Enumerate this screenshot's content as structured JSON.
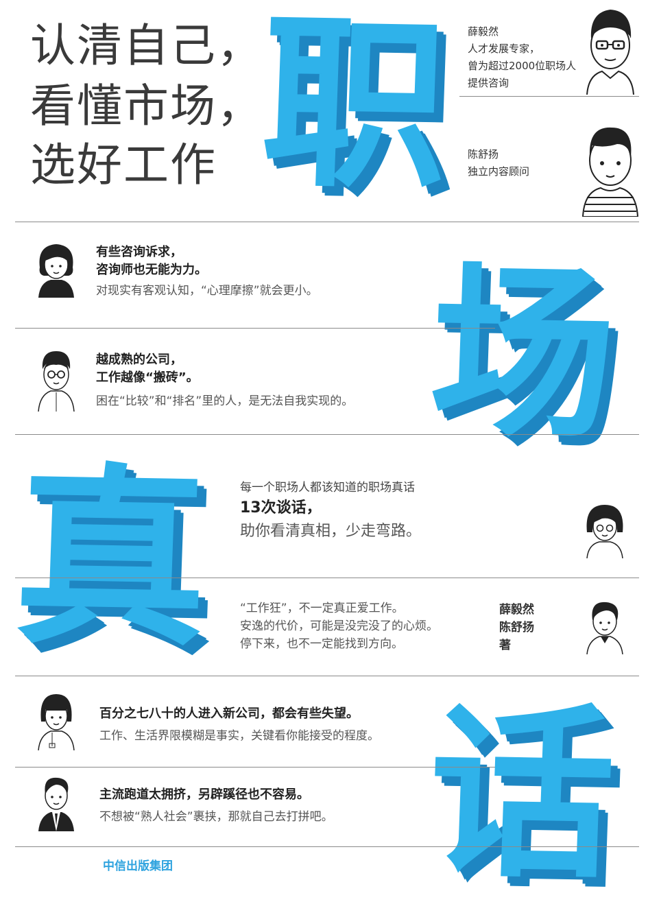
{
  "title": {
    "line1": "认清自己，",
    "line2": "看懂市场，",
    "line3": "选好工作"
  },
  "big_chars": [
    "职",
    "场",
    "真",
    "话"
  ],
  "authors_top": {
    "a1": {
      "name": "薛毅然",
      "desc1": "人才发展专家，",
      "desc2": "曾为超过2000位职场人",
      "desc3": "提供咨询"
    },
    "a2": {
      "name": "陈舒扬",
      "desc1": "独立内容顾问"
    }
  },
  "quotes": [
    {
      "bold1": "有些咨询诉求，",
      "bold2": "咨询师也无能为力。",
      "light": "对现实有客观认知，“心理摩擦”就会更小。"
    },
    {
      "bold1": "越成熟的公司，",
      "bold2": "工作越像“搬砖”。",
      "light": "困在“比较”和“排名”里的人，是无法自我实现的。"
    },
    {
      "bold1": "百分之七八十的人进入新公司，都会有些失望。",
      "light": "工作、生活界限模糊是事实，关键看你能接受的程度。"
    },
    {
      "bold1": "主流跑道太拥挤，另辟蹊径也不容易。",
      "light": "不想被“熟人社会”裹挟，那就自己去打拼吧。"
    }
  ],
  "center": {
    "intro": "每一个职场人都该知道的职场真话",
    "bold": "13次谈话，",
    "sub": "助你看清真相，少走弯路。"
  },
  "mid_quote": {
    "l1": "“工作狂”，不一定真正爱工作。",
    "l2": "安逸的代价，可能是没完没了的心烦。",
    "l3": "停下来，也不一定能找到方向。"
  },
  "byline": {
    "n1": "薛毅然",
    "n2": "陈舒扬",
    "role": "著"
  },
  "publisher": "中信出版集团",
  "colors": {
    "accent": "#2fb2ea",
    "shadow": "#1e86c2",
    "line": "#8a8a8a"
  }
}
